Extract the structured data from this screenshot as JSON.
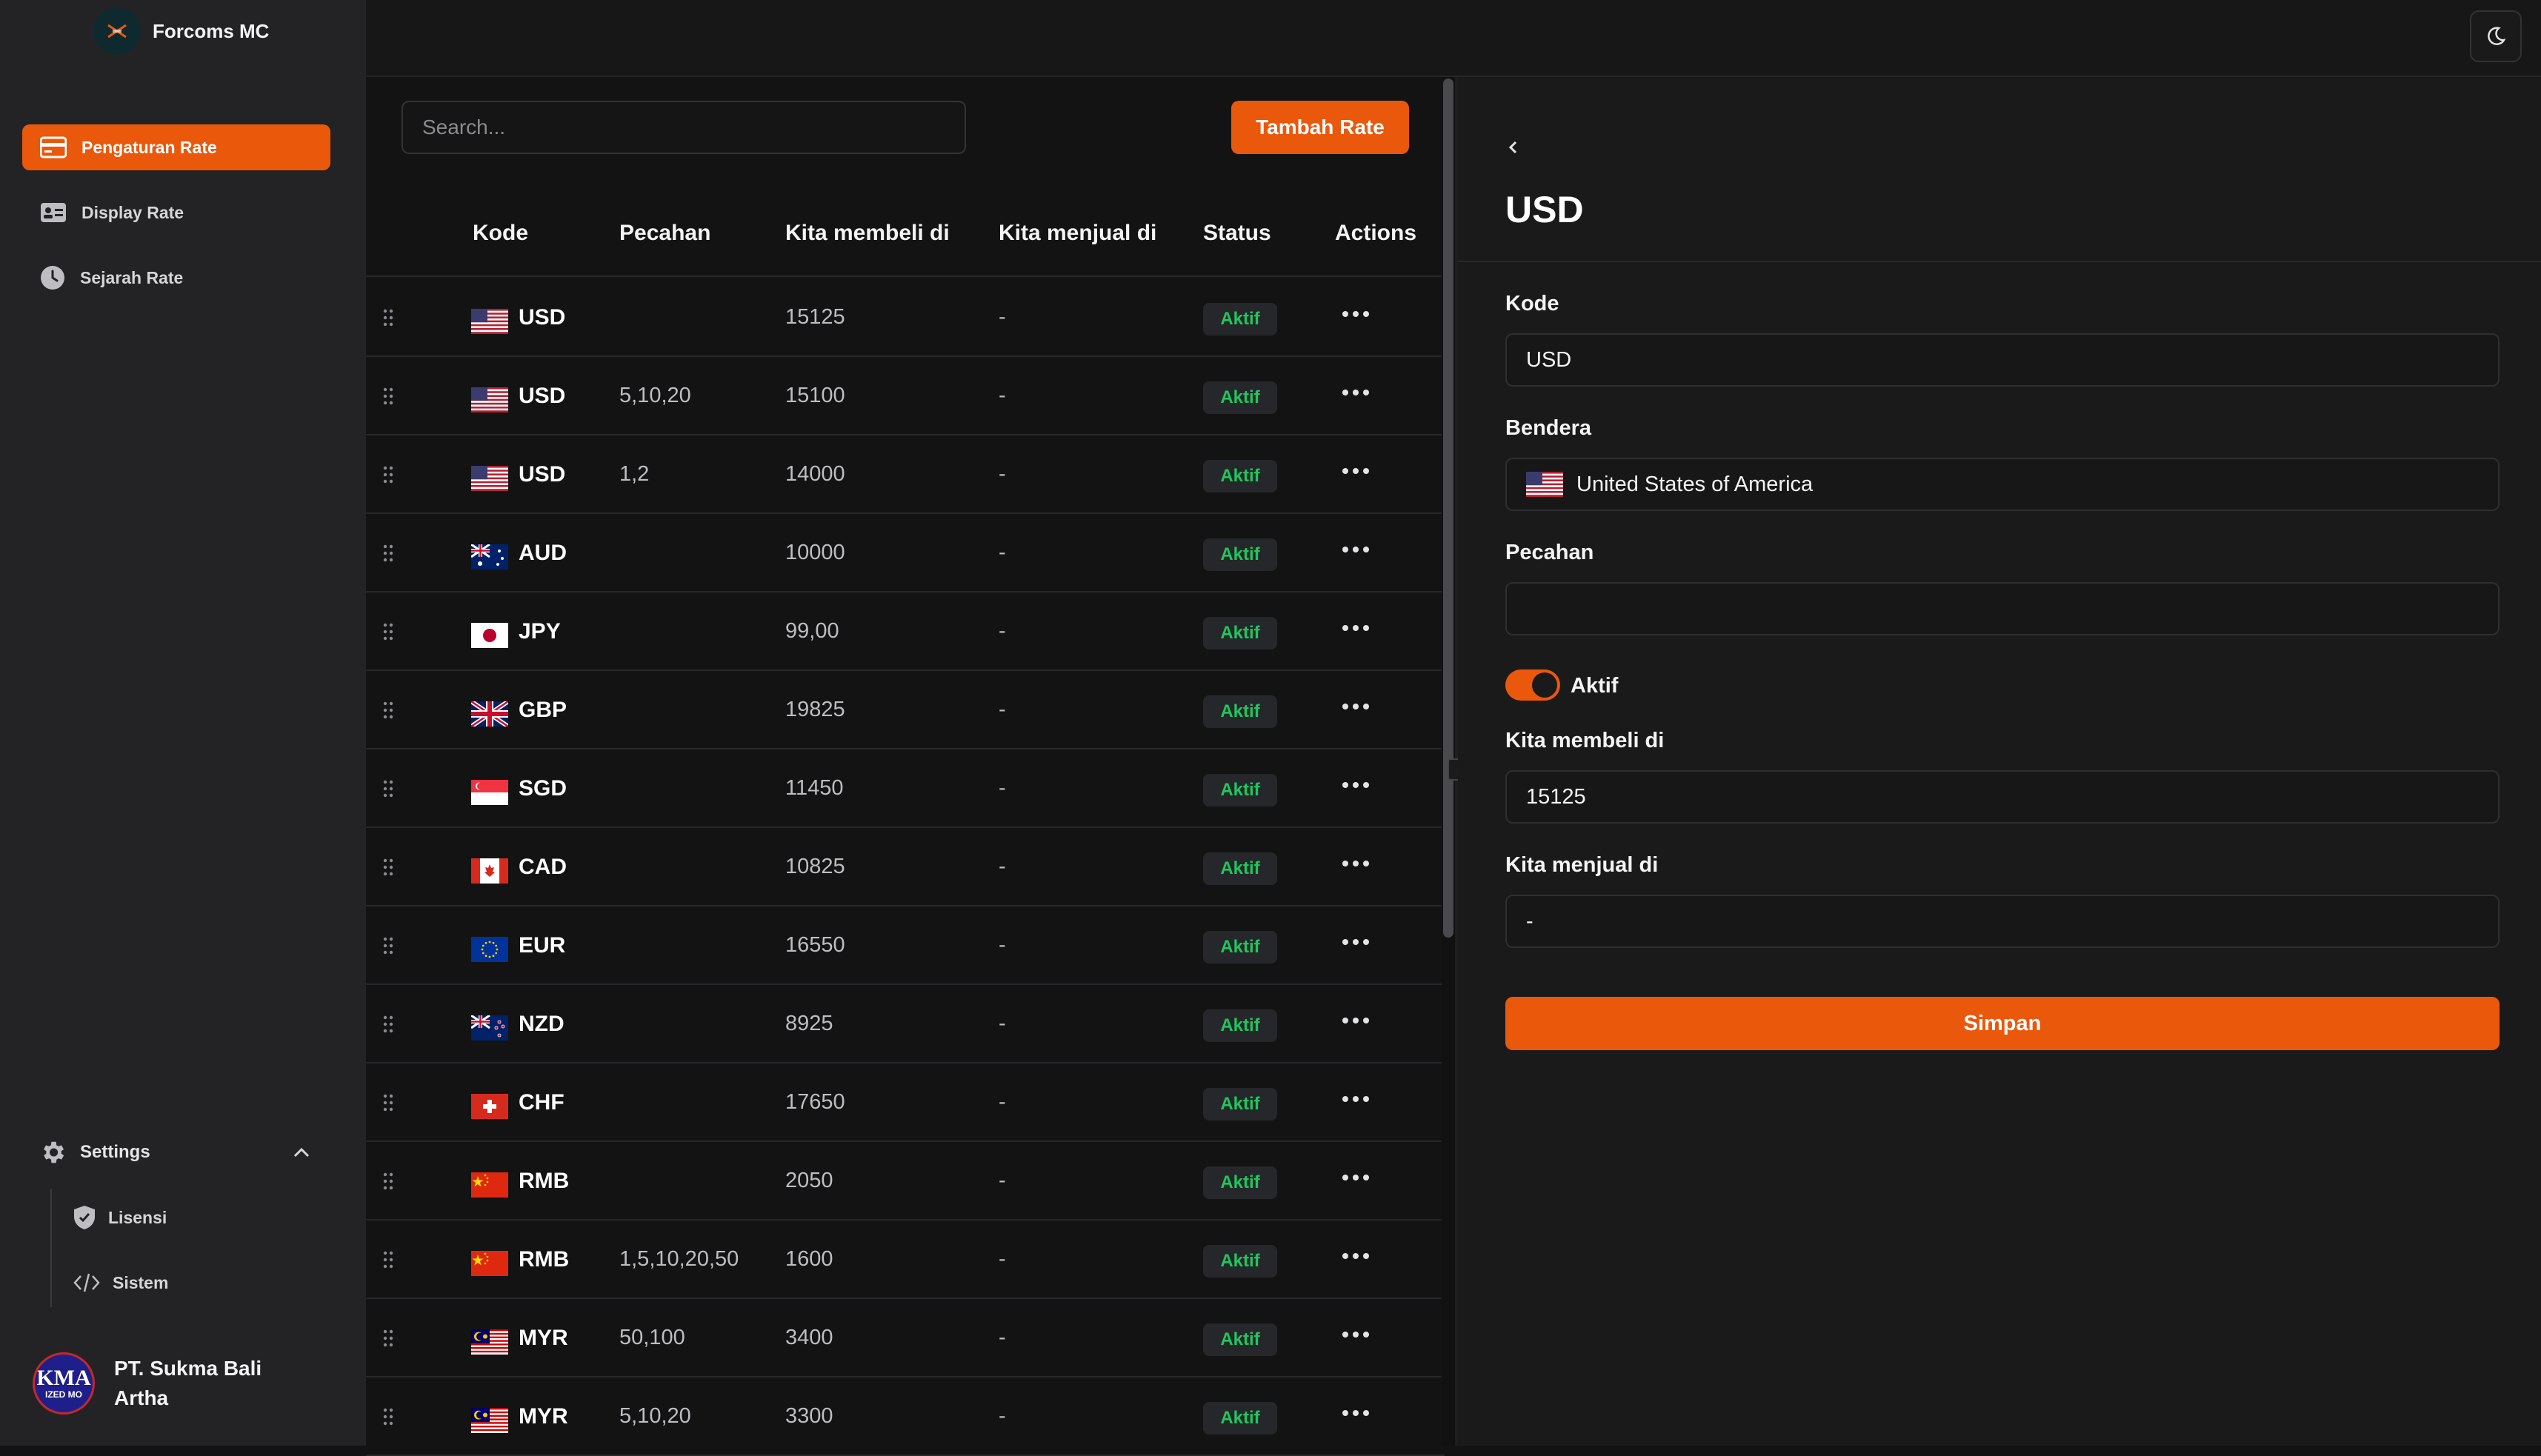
{
  "app": {
    "title": "Forcoms MC"
  },
  "sidebar": {
    "items": [
      {
        "label": "Pengaturan Rate",
        "icon": "credit-card-icon",
        "active": true
      },
      {
        "label": "Display Rate",
        "icon": "id-card-icon",
        "active": false
      },
      {
        "label": "Sejarah Rate",
        "icon": "clock-icon",
        "active": false
      }
    ],
    "settings": {
      "label": "Settings",
      "items": [
        {
          "label": "Lisensi",
          "icon": "shield-check-icon"
        },
        {
          "label": "Sistem",
          "icon": "code-icon"
        }
      ]
    },
    "company": {
      "name": "PT. Sukma Bali Artha",
      "logo_text_top": "KMA",
      "logo_text_bottom": "IZED MO"
    }
  },
  "toolbar": {
    "search_placeholder": "Search...",
    "add_label": "Tambah Rate"
  },
  "table": {
    "columns": [
      "Kode",
      "Pecahan",
      "Kita membeli di",
      "Kita menjual di",
      "Status",
      "Actions"
    ],
    "rows": [
      {
        "flag": "us",
        "kode": "USD",
        "pecahan": "",
        "beli": "15125",
        "jual": "-",
        "status": "Aktif"
      },
      {
        "flag": "us",
        "kode": "USD",
        "pecahan": "5,10,20",
        "beli": "15100",
        "jual": "-",
        "status": "Aktif"
      },
      {
        "flag": "us",
        "kode": "USD",
        "pecahan": "1,2",
        "beli": "14000",
        "jual": "-",
        "status": "Aktif"
      },
      {
        "flag": "au",
        "kode": "AUD",
        "pecahan": "",
        "beli": "10000",
        "jual": "-",
        "status": "Aktif"
      },
      {
        "flag": "jp",
        "kode": "JPY",
        "pecahan": "",
        "beli": "99,00",
        "jual": "-",
        "status": "Aktif"
      },
      {
        "flag": "gb",
        "kode": "GBP",
        "pecahan": "",
        "beli": "19825",
        "jual": "-",
        "status": "Aktif"
      },
      {
        "flag": "sg",
        "kode": "SGD",
        "pecahan": "",
        "beli": "11450",
        "jual": "-",
        "status": "Aktif"
      },
      {
        "flag": "ca",
        "kode": "CAD",
        "pecahan": "",
        "beli": "10825",
        "jual": "-",
        "status": "Aktif"
      },
      {
        "flag": "eu",
        "kode": "EUR",
        "pecahan": "",
        "beli": "16550",
        "jual": "-",
        "status": "Aktif"
      },
      {
        "flag": "nz",
        "kode": "NZD",
        "pecahan": "",
        "beli": "8925",
        "jual": "-",
        "status": "Aktif"
      },
      {
        "flag": "ch",
        "kode": "CHF",
        "pecahan": "",
        "beli": "17650",
        "jual": "-",
        "status": "Aktif"
      },
      {
        "flag": "cn",
        "kode": "RMB",
        "pecahan": "",
        "beli": "2050",
        "jual": "-",
        "status": "Aktif"
      },
      {
        "flag": "cn",
        "kode": "RMB",
        "pecahan": "1,5,10,20,50",
        "beli": "1600",
        "jual": "-",
        "status": "Aktif"
      },
      {
        "flag": "my",
        "kode": "MYR",
        "pecahan": "50,100",
        "beli": "3400",
        "jual": "-",
        "status": "Aktif"
      },
      {
        "flag": "my",
        "kode": "MYR",
        "pecahan": "5,10,20",
        "beli": "3300",
        "jual": "-",
        "status": "Aktif"
      }
    ]
  },
  "panel": {
    "title": "USD",
    "kode_label": "Kode",
    "kode_value": "USD",
    "bendera_label": "Bendera",
    "bendera_value": "United States of America",
    "pecahan_label": "Pecahan",
    "pecahan_value": "",
    "aktif_label": "Aktif",
    "aktif_on": true,
    "beli_label": "Kita membeli di",
    "beli_value": "15125",
    "jual_label": "Kita menjual di",
    "jual_value": "-",
    "save_label": "Simpan"
  },
  "colors": {
    "accent": "#ea580c",
    "status_green": "#22c55e"
  }
}
